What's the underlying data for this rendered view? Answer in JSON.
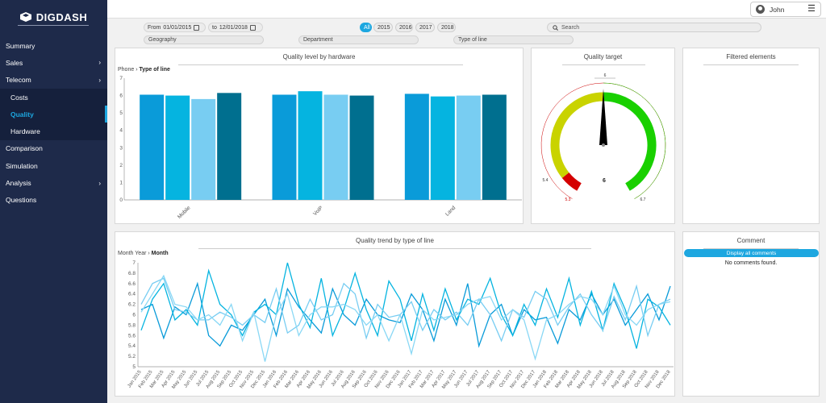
{
  "brand": {
    "name": "DIGDASH"
  },
  "nav": [
    {
      "label": "Summary",
      "sub": false,
      "chevron": false,
      "active": false
    },
    {
      "label": "Sales",
      "sub": false,
      "chevron": true,
      "active": false
    },
    {
      "label": "Telecom",
      "sub": false,
      "chevron": true,
      "active": false
    },
    {
      "label": "Costs",
      "sub": true,
      "chevron": false,
      "active": false
    },
    {
      "label": "Quality",
      "sub": true,
      "chevron": false,
      "active": true
    },
    {
      "label": "Hardware",
      "sub": true,
      "chevron": false,
      "active": false
    },
    {
      "label": "Comparison",
      "sub": false,
      "chevron": false,
      "active": false
    },
    {
      "label": "Simulation",
      "sub": false,
      "chevron": false,
      "active": false
    },
    {
      "label": "Analysis",
      "sub": false,
      "chevron": true,
      "active": false
    },
    {
      "label": "Questions",
      "sub": false,
      "chevron": false,
      "active": false
    }
  ],
  "header": {
    "user": "John"
  },
  "filters": {
    "from_label": "From",
    "from_date": "01/01/2015",
    "to_label": "to",
    "to_date": "12/01/2018",
    "years": [
      "All",
      "2015",
      "2016",
      "2017",
      "2018"
    ],
    "selected_year": "All",
    "search_placeholder": "Search",
    "geography": "Geography",
    "department": "Department",
    "type_of_line": "Type of line"
  },
  "colors": {
    "c1": "#0a9bd9",
    "c2": "#05b4e0",
    "c3": "#78cdf2",
    "c4": "#006f8f",
    "accent": "#1da7e0"
  },
  "bar_panel": {
    "title": "Quality level by hardware",
    "crumb_parent": "Phone",
    "crumb_current": "Type of line"
  },
  "gauge_panel": {
    "title": "Quality target",
    "value": "6",
    "top_label": "6",
    "left_label": "5.4",
    "bottom_left_label": "5.3",
    "right_label": "6.7",
    "min": 5.3,
    "max": 6.7,
    "needle": 6.0
  },
  "filtered_panel": {
    "title": "Filtered elements"
  },
  "line_panel": {
    "title": "Quality trend by type of line",
    "crumb_parent": "Month Year",
    "crumb_current": "Month"
  },
  "comment_panel": {
    "title": "Comment",
    "button": "Display all comments",
    "empty": "No comments found."
  },
  "chart_data": [
    {
      "type": "bar",
      "categories": [
        "Mobile",
        "VoIP",
        "Land"
      ],
      "ylim": [
        0,
        7
      ],
      "yticks": [
        "0",
        "1",
        "2",
        "3",
        "4",
        "5",
        "6",
        "7"
      ],
      "series": [
        {
          "values": [
            6.05,
            6.05,
            6.1
          ]
        },
        {
          "values": [
            6.0,
            6.25,
            5.95
          ]
        },
        {
          "values": [
            5.8,
            6.05,
            6.0
          ]
        },
        {
          "values": [
            6.15,
            6.0,
            6.05
          ]
        }
      ]
    },
    {
      "type": "line",
      "ylim": [
        5,
        7
      ],
      "yticks": [
        "5",
        "5.2",
        "5.4",
        "5.6",
        "5.8",
        "6",
        "6.2",
        "6.4",
        "6.6",
        "6.8",
        "7"
      ],
      "x": [
        "Jan 2015",
        "Feb 2015",
        "Mar 2015",
        "Apr 2015",
        "May 2015",
        "Jun 2015",
        "Jul 2015",
        "Aug 2015",
        "Sep 2015",
        "Oct 2015",
        "Nov 2015",
        "Dec 2015",
        "Jan 2016",
        "Feb 2016",
        "Mar 2016",
        "Apr 2016",
        "May 2016",
        "Jun 2016",
        "Jul 2016",
        "Aug 2016",
        "Sep 2016",
        "Oct 2016",
        "Nov 2016",
        "Dec 2016",
        "Jan 2017",
        "Feb 2017",
        "Mar 2017",
        "Apr 2017",
        "May 2017",
        "Jun 2017",
        "Jul 2017",
        "Aug 2017",
        "Sep 2017",
        "Oct 2017",
        "Nov 2017",
        "Dec 2017",
        "Jan 2018",
        "Feb 2018",
        "Mar 2018",
        "Apr 2018",
        "May 2018",
        "Jun 2018",
        "Jul 2018",
        "Aug 2018",
        "Sep 2018",
        "Oct 2018",
        "Nov 2018",
        "Dec 2018"
      ],
      "series": [
        {
          "values": [
            6.1,
            6.2,
            5.55,
            6.15,
            6.0,
            6.6,
            5.6,
            5.4,
            5.8,
            5.7,
            6.0,
            6.3,
            5.6,
            6.5,
            6.15,
            5.9,
            5.65,
            6.5,
            6.0,
            5.8,
            6.3,
            6.0,
            5.9,
            5.85,
            6.4,
            6.1,
            5.5,
            6.3,
            5.8,
            6.6,
            5.4,
            6.0,
            6.2,
            5.6,
            6.1,
            5.9,
            5.95,
            5.45,
            6.1,
            5.9,
            6.4,
            6.0,
            6.3,
            5.8,
            6.1,
            6.4,
            5.9,
            6.55
          ]
        },
        {
          "values": [
            5.7,
            6.3,
            6.6,
            5.9,
            6.1,
            5.8,
            6.85,
            6.2,
            6.0,
            5.6,
            6.05,
            6.2,
            6.0,
            7.0,
            6.2,
            5.75,
            6.7,
            5.6,
            6.1,
            6.8,
            6.1,
            5.6,
            6.65,
            6.3,
            5.5,
            6.4,
            5.7,
            6.5,
            5.9,
            6.3,
            6.2,
            6.7,
            6.0,
            5.6,
            6.2,
            5.8,
            6.5,
            5.95,
            6.7,
            5.8,
            6.45,
            5.7,
            6.6,
            6.1,
            5.35,
            6.3,
            6.15,
            5.8
          ]
        },
        {
          "values": [
            6.2,
            6.6,
            6.7,
            6.1,
            6.05,
            5.9,
            5.9,
            6.05,
            5.95,
            5.8,
            6.0,
            5.85,
            6.5,
            5.65,
            5.8,
            6.3,
            5.9,
            6.0,
            6.6,
            6.4,
            5.55,
            6.2,
            5.95,
            6.0,
            6.25,
            5.7,
            6.1,
            5.9,
            6.05,
            5.8,
            6.3,
            6.0,
            5.5,
            6.1,
            5.95,
            6.45,
            6.3,
            5.8,
            6.15,
            6.4,
            6.0,
            5.7,
            6.35,
            5.9,
            6.55,
            5.6,
            6.2,
            6.3
          ]
        },
        {
          "values": [
            6.05,
            6.4,
            6.75,
            6.2,
            6.15,
            5.9,
            6.0,
            5.8,
            6.2,
            5.5,
            6.05,
            5.1,
            6.0,
            6.4,
            5.6,
            6.0,
            6.15,
            6.15,
            6.2,
            6.1,
            5.8,
            6.0,
            5.5,
            6.0,
            5.25,
            6.1,
            5.9,
            5.95,
            6.0,
            6.2,
            6.3,
            6.35,
            5.9,
            6.1,
            5.9,
            5.15,
            5.9,
            6.0,
            6.2,
            6.35,
            6.3,
            6.0,
            6.55,
            6.0,
            5.8,
            6.1,
            6.2,
            6.25
          ]
        }
      ]
    },
    {
      "type": "gauge",
      "min": 5.3,
      "max": 6.7,
      "value": 6.0,
      "bands": [
        {
          "from": 5.3,
          "to": 5.4,
          "color": "#d40000"
        },
        {
          "from": 5.4,
          "to": 6.0,
          "color": "#c9d300"
        },
        {
          "from": 6.0,
          "to": 6.7,
          "color": "#19d000"
        }
      ]
    }
  ]
}
